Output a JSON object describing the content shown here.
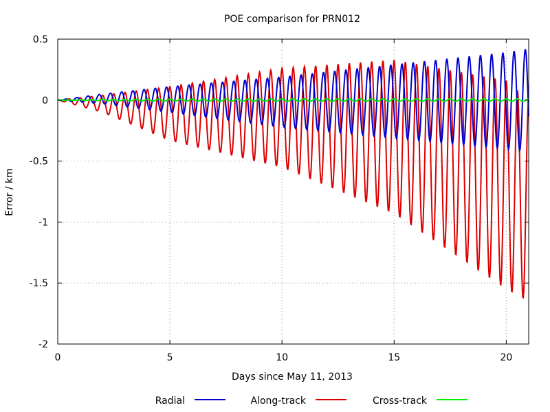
{
  "chart_data": {
    "type": "line",
    "title": "POE comparison for PRN012",
    "xlabel": "Days since May 11, 2013",
    "ylabel": "Error / km",
    "xlim": [
      0,
      21
    ],
    "ylim": [
      -2,
      0.5
    ],
    "x_ticks": [
      "0",
      "5",
      "10",
      "15",
      "20"
    ],
    "y_ticks": [
      "0.5",
      "0",
      "-0.5",
      "-1",
      "-1.5",
      "-2"
    ],
    "grid": true,
    "legend_position": "bottom",
    "oscillation": {
      "period_days": 0.5,
      "sample_step_days": 0.02,
      "envelope_x": [
        0,
        2,
        5,
        10,
        15,
        20,
        21
      ]
    },
    "series": [
      {
        "name": "Radial",
        "color": "#0000cc",
        "upper_envelope": [
          0,
          0.05,
          0.11,
          0.19,
          0.29,
          0.39,
          0.42
        ],
        "lower_envelope": [
          0,
          -0.03,
          -0.1,
          -0.22,
          -0.31,
          -0.4,
          -0.42
        ]
      },
      {
        "name": "Along-track",
        "color": "#dd0000",
        "upper_envelope": [
          0,
          0.04,
          0.11,
          0.26,
          0.33,
          0.16,
          0.0
        ],
        "lower_envelope": [
          0,
          -0.1,
          -0.33,
          -0.55,
          -0.93,
          -1.55,
          -1.65
        ]
      },
      {
        "name": "Cross-track",
        "color": "#00ee00",
        "upper_envelope": [
          0,
          0.005,
          0.008,
          0.01,
          0.01,
          0.01,
          0.01
        ],
        "lower_envelope": [
          0,
          -0.005,
          -0.008,
          -0.01,
          -0.01,
          -0.01,
          -0.01
        ]
      }
    ]
  }
}
